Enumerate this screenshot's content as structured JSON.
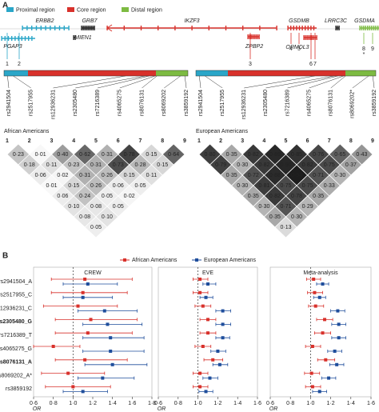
{
  "panel_a": {
    "label": "A",
    "regions": [
      {
        "name": "Proximal region",
        "color": "#2aa6c8"
      },
      {
        "name": "Core region",
        "color": "#d8312b"
      },
      {
        "name": "Distal region",
        "color": "#7dbb42"
      }
    ],
    "genes": [
      {
        "name": "ERBB2",
        "color": "#2aa6c8"
      },
      {
        "name": "PGAP3",
        "color": "#2aa6c8"
      },
      {
        "name": "GRB7",
        "color": "#222222"
      },
      {
        "name": "MIEN1",
        "color": "#222222"
      },
      {
        "name": "IKZF3",
        "color": "#d8312b"
      },
      {
        "name": "ZPBP2",
        "color": "#d8312b"
      },
      {
        "name": "GSDMB",
        "color": "#d8312b"
      },
      {
        "name": "ORMDL3",
        "color": "#d8312b"
      },
      {
        "name": "LRRC3C",
        "color": "#222222"
      },
      {
        "name": "GSDMA",
        "color": "#7dbb42"
      }
    ],
    "snp_numbers": [
      "1",
      "2",
      "3",
      "4",
      "5",
      "6",
      "7",
      "8",
      "9"
    ],
    "snp_star": "*",
    "ld": [
      {
        "title": "African Americans",
        "snps": [
          "rs2941504",
          "rs2517955",
          "rs12936231",
          "rs2305480",
          "rs7216389",
          "rs4065275",
          "rs8076131",
          "rs8069202",
          "rs3859192"
        ],
        "values": [
          [
            0.23,
            0.01,
            0.4,
            0.62,
            0.31,
            0.78,
            0.15,
            0.64
          ],
          [
            0.18,
            0.11,
            0.23,
            0.31,
            0.73,
            0.28,
            0.15
          ],
          [
            0.06,
            0.02,
            0.31,
            0.26,
            0.15,
            0.11
          ],
          [
            0.01,
            0.15,
            0.26,
            0.06,
            0.05
          ],
          [
            0.06,
            0.24,
            0.05,
            0.02
          ],
          [
            0.1,
            0.08,
            0.05
          ],
          [
            0.08,
            0.1
          ],
          [
            0.05
          ]
        ],
        "value_labels": [
          [
            "0·23",
            "0·01",
            "0·40",
            "0·62",
            "0·31",
            "0·78",
            "0·15",
            "0·64"
          ],
          [
            "0·18",
            "0·11",
            "0·23",
            "0·31",
            "0·73",
            "0·28",
            "0·15"
          ],
          [
            "0·06",
            "0·02",
            "0·31",
            "0·26",
            "0·15",
            "0·11"
          ],
          [
            "0·01",
            "0·15",
            "0·26",
            "0·06",
            "0·05"
          ],
          [
            "0·06",
            "0·24",
            "0·05",
            "0·02"
          ],
          [
            "0·10",
            "0·08",
            "0·05"
          ],
          [
            "0·08",
            "0·10"
          ],
          [
            "0·05"
          ]
        ]
      },
      {
        "title": "European Americans",
        "snps": [
          "rs2941504",
          "rs2517955",
          "rs12936231",
          "rs2305480",
          "rs7216389",
          "rs4065275",
          "rs8076131",
          "rs8069202*",
          "rs3859192"
        ],
        "values": [
          [
            0.8,
            0.35,
            0.82,
            0.89,
            0.85,
            0.76,
            0.65,
            0.43
          ],
          [
            0.79,
            0.3,
            0.82,
            0.9,
            0.82,
            0.75,
            0.37
          ],
          [
            0.35,
            0.72,
            0.88,
            0.94,
            0.71,
            0.3
          ],
          [
            0.3,
            0.81,
            0.75,
            0.75,
            0.33
          ],
          [
            0.35,
            0.82,
            0.78,
            0.35
          ],
          [
            0.3,
            0.71,
            0.29
          ],
          [
            0.35,
            0.3
          ],
          [
            0.13
          ]
        ],
        "value_labels": [
          [
            "0·80",
            "0·35",
            "0·82",
            "0·89",
            "0·85",
            "0·76",
            "0·65",
            "0·43"
          ],
          [
            "0·79",
            "0·30",
            "0·82",
            "0·90",
            "0·82",
            "0·75",
            "0·37"
          ],
          [
            "0·35",
            "0·72",
            "0·88",
            "0·94",
            "0·71",
            "0·30"
          ],
          [
            "0·30",
            "0·81",
            "0·75",
            "0·75",
            "0·33"
          ],
          [
            "0·35",
            "0·82",
            "0·78",
            "0·35"
          ],
          [
            "0·30",
            "0·71",
            "0·29"
          ],
          [
            "0·35",
            "0·30"
          ],
          [
            "0·13"
          ]
        ]
      }
    ]
  },
  "panel_b": {
    "label": "B",
    "bold_rows": [
      3,
      6
    ]
  },
  "chart_data": [
    {
      "type": "forest",
      "title": "CREW",
      "xlabel": "OR",
      "ref": 1,
      "categories": [
        "rs2941504_A",
        "rs2517955_C",
        "rs12936231_C",
        "rs2305480_G",
        "rs7216389_T",
        "rs4065275_G",
        "rs8076131_A",
        "rs8069202_A*",
        "rs3859192"
      ],
      "xlim": [
        0.6,
        1.8
      ],
      "xticks": [
        {
          "value": 0.6,
          "label": "0·6"
        },
        {
          "value": 0.8,
          "label": "0·8"
        },
        {
          "value": 1,
          "label": "1·0"
        },
        {
          "value": 1.2,
          "label": "1·2"
        },
        {
          "value": 1.4,
          "label": "1·4"
        },
        {
          "value": 1.6,
          "label": "1·6"
        },
        {
          "value": 1.8,
          "label": "1·8"
        }
      ],
      "series": [
        {
          "name": "African Americans",
          "color": "#d8312b",
          "values": [
            1.12,
            1.1,
            1.05,
            1.18,
            1.15,
            0.8,
            1.12,
            0.95,
            1.0
          ],
          "lower": [
            0.78,
            0.78,
            0.7,
            0.82,
            0.82,
            0.6,
            0.82,
            0.68,
            0.72
          ],
          "upper": [
            1.6,
            1.55,
            1.45,
            1.65,
            1.6,
            1.07,
            1.55,
            1.32,
            1.38
          ]
        },
        {
          "name": "European Americans",
          "color": "#1f4e9c",
          "values": [
            1.15,
            1.1,
            1.32,
            1.35,
            1.38,
            1.38,
            1.4,
            1.3,
            1.1
          ],
          "lower": [
            0.9,
            0.9,
            1.05,
            1.1,
            1.1,
            1.1,
            1.12,
            1.05,
            0.9
          ],
          "upper": [
            1.45,
            1.4,
            1.65,
            1.7,
            1.72,
            1.72,
            1.75,
            1.62,
            1.35
          ]
        }
      ]
    },
    {
      "type": "forest",
      "title": "EVE",
      "xlabel": "OR",
      "ref": 1,
      "categories": [
        "rs2941504_A",
        "rs2517955_C",
        "rs12936231_C",
        "rs2305480_G",
        "rs7216389_T",
        "rs4065275_G",
        "rs8076131_A",
        "rs8069202_A*",
        "rs3859192"
      ],
      "xlim": [
        0.6,
        1.6
      ],
      "xticks": [
        {
          "value": 0.6,
          "label": "0·6"
        },
        {
          "value": 0.8,
          "label": "0·8"
        },
        {
          "value": 1,
          "label": "1·0"
        },
        {
          "value": 1.2,
          "label": "1·2"
        },
        {
          "value": 1.4,
          "label": "1·4"
        },
        {
          "value": 1.6,
          "label": "1·6"
        }
      ],
      "series": [
        {
          "name": "African Americans",
          "color": "#d8312b",
          "values": [
            1.02,
            1.02,
            1.05,
            1.1,
            1.1,
            1.05,
            1.15,
            1.02,
            1.02
          ],
          "lower": [
            0.95,
            0.95,
            0.97,
            1.02,
            1.02,
            0.97,
            1.06,
            0.95,
            0.95
          ],
          "upper": [
            1.1,
            1.1,
            1.13,
            1.18,
            1.18,
            1.13,
            1.25,
            1.1,
            1.1
          ]
        },
        {
          "name": "European Americans",
          "color": "#1f4e9c",
          "values": [
            1.1,
            1.08,
            1.25,
            1.25,
            1.25,
            1.2,
            1.22,
            1.12,
            1.08
          ],
          "lower": [
            1.05,
            1.02,
            1.18,
            1.18,
            1.18,
            1.13,
            1.15,
            1.05,
            1.01
          ],
          "upper": [
            1.18,
            1.15,
            1.33,
            1.33,
            1.32,
            1.28,
            1.3,
            1.2,
            1.15
          ]
        }
      ]
    },
    {
      "type": "forest",
      "title": "Meta-analysis",
      "xlabel": "OR",
      "ref": 1,
      "categories": [
        "rs2941504_A",
        "rs2517955_C",
        "rs12936231_C",
        "rs2305480_G",
        "rs7216389_T",
        "rs4065275_G",
        "rs8076131_A",
        "rs8069202_A*",
        "rs3859192"
      ],
      "xlim": [
        0.6,
        1.6
      ],
      "xticks": [
        {
          "value": 0.6,
          "label": "0·6"
        },
        {
          "value": 0.8,
          "label": "0·8"
        },
        {
          "value": 1,
          "label": "1·0"
        },
        {
          "value": 1.2,
          "label": "1·2"
        },
        {
          "value": 1.4,
          "label": "1·4"
        },
        {
          "value": 1.6,
          "label": "1·6"
        }
      ],
      "series": [
        {
          "name": "African Americans",
          "color": "#d8312b",
          "values": [
            1.03,
            1.04,
            1.05,
            1.14,
            1.12,
            1.02,
            1.15,
            1.01,
            1.02
          ],
          "lower": [
            0.96,
            0.97,
            0.98,
            1.06,
            1.04,
            0.95,
            1.07,
            0.94,
            0.95
          ],
          "upper": [
            1.1,
            1.12,
            1.13,
            1.22,
            1.2,
            1.1,
            1.24,
            1.09,
            1.1
          ]
        },
        {
          "name": "European Americans",
          "color": "#1f4e9c",
          "values": [
            1.12,
            1.09,
            1.27,
            1.28,
            1.28,
            1.24,
            1.26,
            1.18,
            1.09
          ],
          "lower": [
            1.06,
            1.03,
            1.2,
            1.21,
            1.21,
            1.17,
            1.19,
            1.11,
            1.02
          ],
          "upper": [
            1.18,
            1.15,
            1.34,
            1.35,
            1.35,
            1.31,
            1.33,
            1.25,
            1.16
          ]
        }
      ]
    }
  ]
}
